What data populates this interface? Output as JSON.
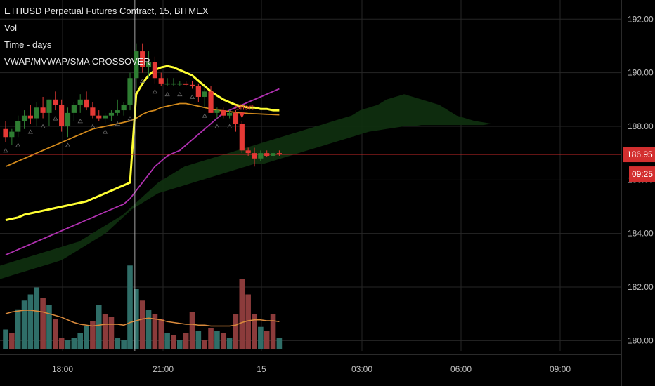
{
  "legend": {
    "title": "ETHUSD Perpetual Futures Contract, 15, BITMEX",
    "vol": "Vol",
    "time": "Time - days",
    "indicator": "VWAP/MVWAP/SMA CROSSOVER"
  },
  "annotation": {
    "signal_label": "Short"
  },
  "colors": {
    "background": "#000000",
    "grid": "#262626",
    "up_candle": "#2e7d32",
    "down_candle": "#e53935",
    "vwap": "#ffff33",
    "mvwap": "#d38a1c",
    "sma": "#b030b0",
    "cloud": "#0f2e0f",
    "price_line": "#c62828",
    "vol_up": "#2f6e68",
    "vol_down": "#8b3b3b",
    "vol_ma": "#d98a3c",
    "crosshair": "#cccccc"
  },
  "chart_data": {
    "type": "candlestick",
    "y_axis": {
      "ticks": [
        "192.00",
        "190.00",
        "188.00",
        "186.00",
        "184.00",
        "182.00",
        "180.00"
      ],
      "range": [
        179.8,
        192.4
      ]
    },
    "x_axis": {
      "ticks": [
        "18:00",
        "21:00",
        "15",
        "03:00",
        "06:00",
        "09:00"
      ]
    },
    "last_price": "186.95",
    "countdown": "09:25",
    "candles_ohlc": [
      [
        187.9,
        188.2,
        187.4,
        187.6
      ],
      [
        187.6,
        187.9,
        187.3,
        187.8
      ],
      [
        187.8,
        188.4,
        187.6,
        188.2
      ],
      [
        188.2,
        188.6,
        187.9,
        188.4
      ],
      [
        188.4,
        188.8,
        188.1,
        188.3
      ],
      [
        188.3,
        188.9,
        188.0,
        188.7
      ],
      [
        188.7,
        189.1,
        188.3,
        188.5
      ],
      [
        188.5,
        189.0,
        188.0,
        189.0
      ],
      [
        189.0,
        189.3,
        188.6,
        188.8
      ],
      [
        188.8,
        189.0,
        187.8,
        188.0
      ],
      [
        188.0,
        188.7,
        187.6,
        188.5
      ],
      [
        188.5,
        188.9,
        188.2,
        188.8
      ],
      [
        188.8,
        189.2,
        188.5,
        189.0
      ],
      [
        189.0,
        189.3,
        188.6,
        188.7
      ],
      [
        188.7,
        188.9,
        188.3,
        188.4
      ],
      [
        188.4,
        188.6,
        188.2,
        188.3
      ],
      [
        188.3,
        188.5,
        188.1,
        188.4
      ],
      [
        188.4,
        188.6,
        188.2,
        188.5
      ],
      [
        188.5,
        189.0,
        188.4,
        188.6
      ],
      [
        188.6,
        188.9,
        188.4,
        188.8
      ],
      [
        188.8,
        190.0,
        188.6,
        189.8
      ],
      [
        189.8,
        191.1,
        189.4,
        190.8
      ],
      [
        190.8,
        191.1,
        190.0,
        190.2
      ],
      [
        190.2,
        190.8,
        189.8,
        190.4
      ],
      [
        190.4,
        190.6,
        189.6,
        189.8
      ],
      [
        189.8,
        190.0,
        189.5,
        189.6
      ],
      [
        189.6,
        189.8,
        189.5,
        189.6
      ],
      [
        189.6,
        189.8,
        189.5,
        189.6
      ],
      [
        189.6,
        189.7,
        189.5,
        189.6
      ],
      [
        189.6,
        189.7,
        189.5,
        189.55
      ],
      [
        189.55,
        189.7,
        189.4,
        189.5
      ],
      [
        189.5,
        189.6,
        188.9,
        189.1
      ],
      [
        189.1,
        189.5,
        188.7,
        189.3
      ],
      [
        189.3,
        189.5,
        188.5,
        188.5
      ],
      [
        188.5,
        188.7,
        188.3,
        188.6
      ],
      [
        188.6,
        188.7,
        188.3,
        188.4
      ],
      [
        188.4,
        188.6,
        188.3,
        188.5
      ],
      [
        188.5,
        188.6,
        187.8,
        188.1
      ],
      [
        188.1,
        188.2,
        187.0,
        187.1
      ],
      [
        187.1,
        187.2,
        186.9,
        187.0
      ],
      [
        187.0,
        187.2,
        186.5,
        186.8
      ],
      [
        186.8,
        187.1,
        186.7,
        187.0
      ],
      [
        187.0,
        187.1,
        186.85,
        186.9
      ],
      [
        186.9,
        187.1,
        186.8,
        187.0
      ],
      [
        187.0,
        187.1,
        186.9,
        186.95
      ]
    ],
    "vwap": [
      184.5,
      184.55,
      184.6,
      184.7,
      184.75,
      184.8,
      184.85,
      184.9,
      184.95,
      185.0,
      185.05,
      185.1,
      185.15,
      185.2,
      185.3,
      185.4,
      185.5,
      185.6,
      185.7,
      185.8,
      185.9,
      189.2,
      189.6,
      189.9,
      190.1,
      190.2,
      190.25,
      190.2,
      190.1,
      190.0,
      189.9,
      189.7,
      189.5,
      189.3,
      189.15,
      189.0,
      188.9,
      188.8,
      188.75,
      188.7,
      188.7,
      188.65,
      188.65,
      188.6,
      188.6
    ],
    "mvwap": [
      186.5,
      186.6,
      186.7,
      186.8,
      186.9,
      187.0,
      187.1,
      187.2,
      187.3,
      187.4,
      187.5,
      187.6,
      187.7,
      187.8,
      187.9,
      187.95,
      188.0,
      188.05,
      188.1,
      188.15,
      188.2,
      188.3,
      188.45,
      188.55,
      188.6,
      188.7,
      188.75,
      188.8,
      188.85,
      188.85,
      188.8,
      188.75,
      188.7,
      188.65,
      188.6,
      188.58,
      188.55,
      188.52,
      188.5,
      188.48,
      188.47,
      188.46,
      188.45,
      188.44,
      188.43
    ],
    "sma": [
      183.2,
      183.3,
      183.4,
      183.5,
      183.6,
      183.7,
      183.8,
      183.9,
      184.0,
      184.1,
      184.2,
      184.3,
      184.4,
      184.5,
      184.6,
      184.7,
      184.8,
      184.9,
      185.0,
      185.1,
      185.3,
      185.6,
      185.9,
      186.2,
      186.5,
      186.7,
      186.9,
      187.0,
      187.1,
      187.3,
      187.5,
      187.7,
      187.9,
      188.1,
      188.3,
      188.5,
      188.6,
      188.7,
      188.8,
      188.9,
      189.0,
      189.1,
      189.2,
      189.3,
      189.4
    ],
    "cloud_upper": [
      182.8,
      182.9,
      183.0,
      183.1,
      183.2,
      183.3,
      183.4,
      183.5,
      183.6,
      183.7,
      183.9,
      184.1,
      184.3,
      184.5,
      184.7,
      185.0,
      185.3,
      185.6,
      185.9,
      186.1,
      186.3,
      186.5,
      186.6,
      186.7,
      186.8,
      186.9,
      187.0,
      187.1,
      187.2,
      187.3,
      187.4,
      187.5,
      187.6,
      187.7,
      187.8,
      187.9,
      188.0,
      188.1,
      188.2,
      188.3,
      188.4,
      188.6,
      188.7,
      188.8,
      189.0,
      189.1,
      189.2,
      189.1,
      189.0,
      188.9,
      188.8,
      188.6,
      188.4,
      188.3,
      188.2,
      188.15,
      188.1
    ],
    "cloud_lower": [
      182.3,
      182.4,
      182.5,
      182.6,
      182.7,
      182.8,
      182.9,
      183.0,
      183.2,
      183.4,
      183.6,
      183.8,
      184.0,
      184.3,
      184.6,
      184.9,
      185.1,
      185.3,
      185.5,
      185.6,
      185.7,
      185.8,
      185.9,
      186.0,
      186.1,
      186.2,
      186.3,
      186.4,
      186.5,
      186.6,
      186.6,
      186.7,
      186.8,
      186.9,
      187.0,
      187.1,
      187.2,
      187.3,
      187.4,
      187.5,
      187.6,
      187.7,
      187.8,
      187.85,
      187.9,
      187.95,
      188.0,
      188.0,
      188.05,
      188.05,
      188.05,
      188.05,
      188.05,
      188.05,
      188.05,
      188.05,
      188.1
    ],
    "volume": [
      0.22,
      0.18,
      0.45,
      0.55,
      0.62,
      0.7,
      0.58,
      0.5,
      0.34,
      0.12,
      0.1,
      0.12,
      0.18,
      0.26,
      0.32,
      0.5,
      0.4,
      0.36,
      0.12,
      0.1,
      0.95,
      0.68,
      0.55,
      0.44,
      0.4,
      0.34,
      0.18,
      0.16,
      0.1,
      0.18,
      0.42,
      0.2,
      0.1,
      0.24,
      0.2,
      0.18,
      0.12,
      0.4,
      0.8,
      0.62,
      0.4,
      0.25,
      0.2,
      0.4,
      0.12
    ],
    "vol_dir": [
      1,
      -1,
      1,
      1,
      1,
      1,
      -1,
      1,
      -1,
      -1,
      1,
      1,
      1,
      1,
      -1,
      1,
      -1,
      -1,
      1,
      1,
      1,
      1,
      -1,
      1,
      -1,
      -1,
      1,
      -1,
      1,
      -1,
      -1,
      1,
      -1,
      -1,
      1,
      -1,
      1,
      -1,
      -1,
      -1,
      -1,
      1,
      -1,
      -1,
      1
    ],
    "vol_ma": [
      0.4,
      0.42,
      0.43,
      0.44,
      0.44,
      0.43,
      0.42,
      0.4,
      0.38,
      0.36,
      0.33,
      0.3,
      0.28,
      0.27,
      0.26,
      0.27,
      0.28,
      0.28,
      0.28,
      0.27,
      0.3,
      0.32,
      0.34,
      0.35,
      0.34,
      0.33,
      0.31,
      0.3,
      0.29,
      0.28,
      0.28,
      0.27,
      0.27,
      0.26,
      0.26,
      0.26,
      0.26,
      0.27,
      0.3,
      0.32,
      0.33,
      0.33,
      0.32,
      0.32,
      0.31
    ],
    "short_signal_index": 38,
    "crosshair_index": 21
  }
}
